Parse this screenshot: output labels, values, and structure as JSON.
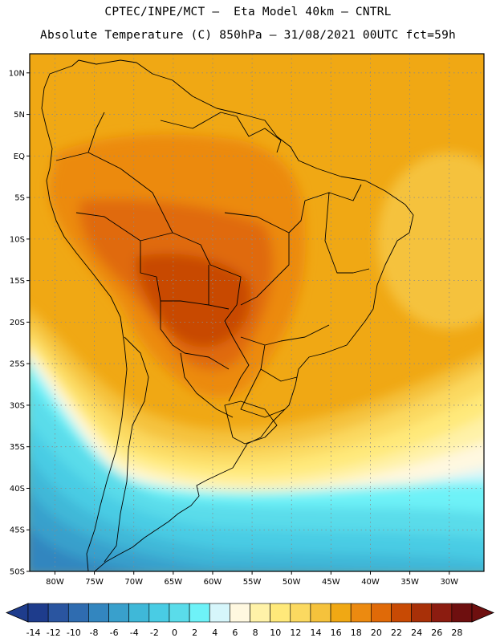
{
  "header": {
    "line1": "CPTEC/INPE/MCT –  Eta Model 40km – CNTRL",
    "line2": "Absolute Temperature (C) 850hPa – 31/08/2021 00UTC fct=59h"
  },
  "map": {
    "lat_labels": [
      "10N",
      "5N",
      "EQ",
      "5S",
      "10S",
      "15S",
      "20S",
      "25S",
      "30S",
      "35S",
      "40S",
      "45S",
      "50S"
    ],
    "lat_values": [
      10,
      5,
      0,
      -5,
      -10,
      -15,
      -20,
      -25,
      -30,
      -35,
      -40,
      -45,
      -50
    ],
    "lon_labels": [
      "80W",
      "75W",
      "70W",
      "65W",
      "60W",
      "55W",
      "50W",
      "45W",
      "40W",
      "35W",
      "30W"
    ],
    "lon_values": [
      -80,
      -75,
      -70,
      -65,
      -60,
      -55,
      -50,
      -45,
      -40,
      -35,
      -30
    ],
    "extent": {
      "lon_min": -83.2,
      "lon_max": -25.6,
      "lat_min": -50,
      "lat_max": 12.3
    },
    "gridlines": "dotted"
  },
  "colorbar": {
    "labels": [
      "-14",
      "-12",
      "-10",
      "-8",
      "-6",
      "-4",
      "-2",
      "0",
      "2",
      "4",
      "6",
      "8",
      "10",
      "12",
      "14",
      "16",
      "18",
      "20",
      "22",
      "24",
      "26",
      "28"
    ],
    "colors": [
      "#1e3c8c",
      "#2a55a0",
      "#2f6cb0",
      "#3386bf",
      "#39a0cc",
      "#3fb8d8",
      "#49cce4",
      "#5adcea",
      "#6ef2f8",
      "#d6f6fb",
      "#fff8e0",
      "#fff2a8",
      "#ffe97a",
      "#fbd960",
      "#f5c23c",
      "#f0a814",
      "#ec8a10",
      "#e06a08",
      "#c84a04",
      "#a83008",
      "#8c1c10",
      "#6e0f0f"
    ],
    "low_color": "#1e3c8c",
    "high_color": "#6e0f0f"
  }
}
